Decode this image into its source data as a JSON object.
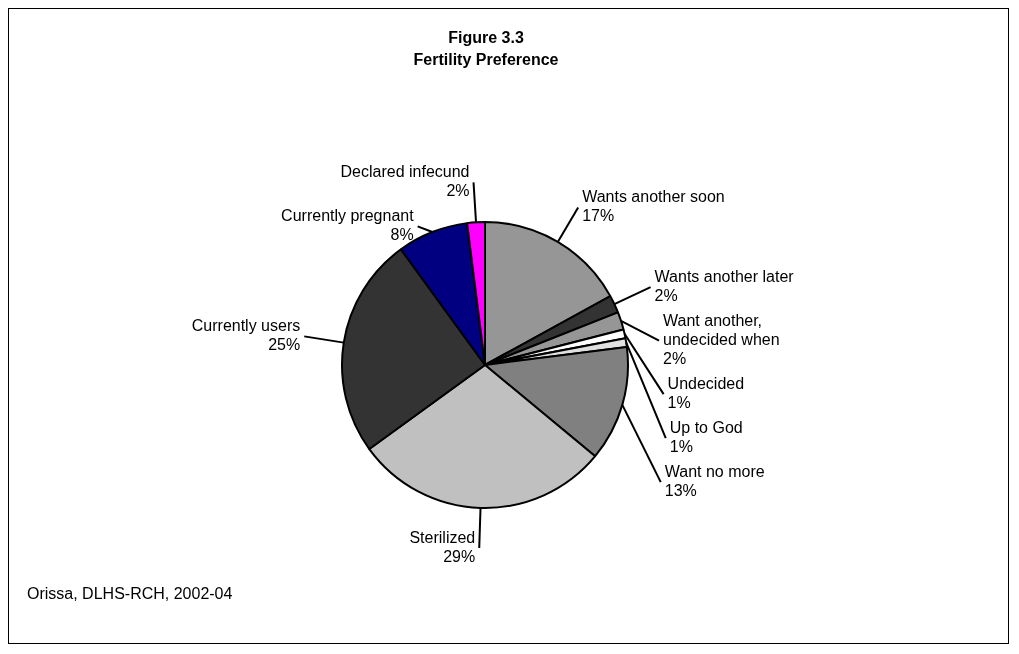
{
  "chart_data": {
    "type": "pie",
    "title": "Figure 3.3",
    "subtitle": "Fertility Preference",
    "categories": [
      "Wants another soon",
      "Wants another later",
      "Want another, undecided when",
      "Undecided",
      "Up to God",
      "Want no more",
      "Sterilized",
      "Currently users",
      "Currently pregnant",
      "Declared infecund"
    ],
    "values": [
      17,
      2,
      2,
      1,
      1,
      13,
      29,
      25,
      8,
      2
    ],
    "value_labels": [
      "17%",
      "2%",
      "2%",
      "1%",
      "1%",
      "13%",
      "29%",
      "25%",
      "8%",
      "2%"
    ],
    "colors": [
      "#969696",
      "#333333",
      "#969696",
      "#ffffff",
      "#e0e0e0",
      "#808080",
      "#c0c0c0",
      "#333333",
      "#000080",
      "#ff00ff"
    ],
    "annotations": [
      "Orissa, DLHS-RCH, 2002-04"
    ],
    "legend": false
  }
}
